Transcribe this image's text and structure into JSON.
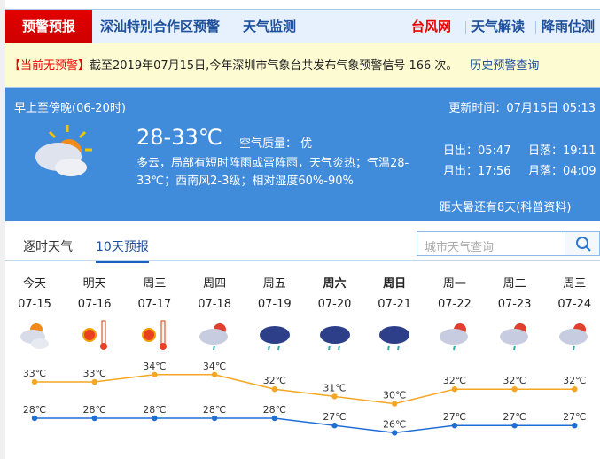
{
  "topnav": {
    "active": "预警预报",
    "items": [
      "深汕特别合作区预警",
      "天气监测"
    ],
    "right": [
      "台风网",
      "天气解读",
      "降雨估测"
    ]
  },
  "warning": {
    "tag": "【当前无预警】",
    "text": "截至2019年07月15日,今年深圳市气象台共发布气象预警信号 166 次。",
    "link": "历史预警查询"
  },
  "now": {
    "period": "早上至傍晚(06-20时)",
    "update": "更新时间：07月15日 05:13",
    "temp": "28-33℃",
    "aqi": "空气质量： 优",
    "desc": "多云，局部有短时阵雨或雷阵雨，天气炎热；气温28-33℃；西南风2-3级；相对湿度60%-90%",
    "sunrise": "日出：05:47",
    "sunset": "日落：19:11",
    "moonrise": "月出：17:56",
    "moonset": "月落：04:09",
    "solar_term": "距大暑还有8天(科普资料)",
    "icon": "cloudy-sun-icon"
  },
  "tabs": [
    "逐时天气",
    "10天预报"
  ],
  "search": {
    "placeholder": "城市天气查询"
  },
  "forecast": [
    {
      "day": "今天",
      "date": "07-15",
      "icon": "partly-cloudy",
      "high": "33℃",
      "low": "28℃",
      "h": 33,
      "l": 28
    },
    {
      "day": "明天",
      "date": "07-16",
      "icon": "hot-sunny",
      "high": "33℃",
      "low": "28℃",
      "h": 33,
      "l": 28
    },
    {
      "day": "周三",
      "date": "07-17",
      "icon": "hot-sunny",
      "high": "34℃",
      "low": "28℃",
      "h": 34,
      "l": 28
    },
    {
      "day": "周四",
      "date": "07-18",
      "icon": "shower",
      "high": "34℃",
      "low": "28℃",
      "h": 34,
      "l": 28
    },
    {
      "day": "周五",
      "date": "07-19",
      "icon": "rain",
      "high": "32℃",
      "low": "28℃",
      "h": 32,
      "l": 28
    },
    {
      "day": "周六",
      "date": "07-20",
      "icon": "rain",
      "high": "31℃",
      "low": "27℃",
      "h": 31,
      "l": 27
    },
    {
      "day": "周日",
      "date": "07-21",
      "icon": "rain",
      "high": "30℃",
      "low": "26℃",
      "h": 30,
      "l": 26
    },
    {
      "day": "周一",
      "date": "07-22",
      "icon": "shower",
      "high": "32℃",
      "low": "27℃",
      "h": 32,
      "l": 27
    },
    {
      "day": "周二",
      "date": "07-23",
      "icon": "shower",
      "high": "32℃",
      "low": "27℃",
      "h": 32,
      "l": 27
    },
    {
      "day": "周三",
      "date": "07-24",
      "icon": "shower",
      "high": "32℃",
      "low": "27℃",
      "h": 32,
      "l": 27
    }
  ],
  "colors": {
    "high": "#f5a623",
    "low": "#1f6ed4"
  }
}
